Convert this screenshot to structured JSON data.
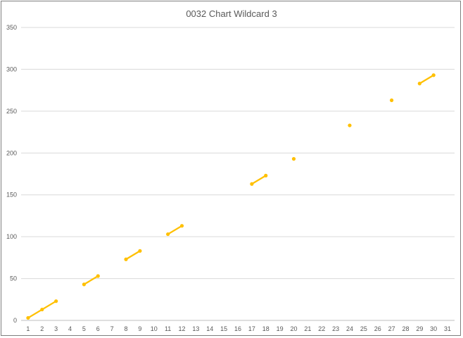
{
  "chart_data": {
    "type": "line",
    "title": "0032 Chart Wildcard 3",
    "xlabel": "",
    "ylabel": "",
    "x": [
      1,
      2,
      3,
      4,
      5,
      6,
      7,
      8,
      9,
      10,
      11,
      12,
      13,
      14,
      15,
      16,
      17,
      18,
      19,
      20,
      21,
      22,
      23,
      24,
      25,
      26,
      27,
      28,
      29,
      30,
      31
    ],
    "series": [
      {
        "name": "",
        "color": "#FFC000",
        "values": [
          3,
          13,
          23,
          null,
          43,
          53,
          null,
          73,
          83,
          null,
          103,
          113,
          null,
          null,
          null,
          null,
          163,
          173,
          null,
          193,
          null,
          null,
          null,
          233,
          null,
          null,
          263,
          null,
          283,
          293,
          null
        ]
      }
    ],
    "ylim": [
      0,
      350
    ],
    "yticks": [
      0,
      50,
      100,
      150,
      200,
      250,
      300,
      350
    ],
    "grid": true,
    "legend": "none"
  }
}
